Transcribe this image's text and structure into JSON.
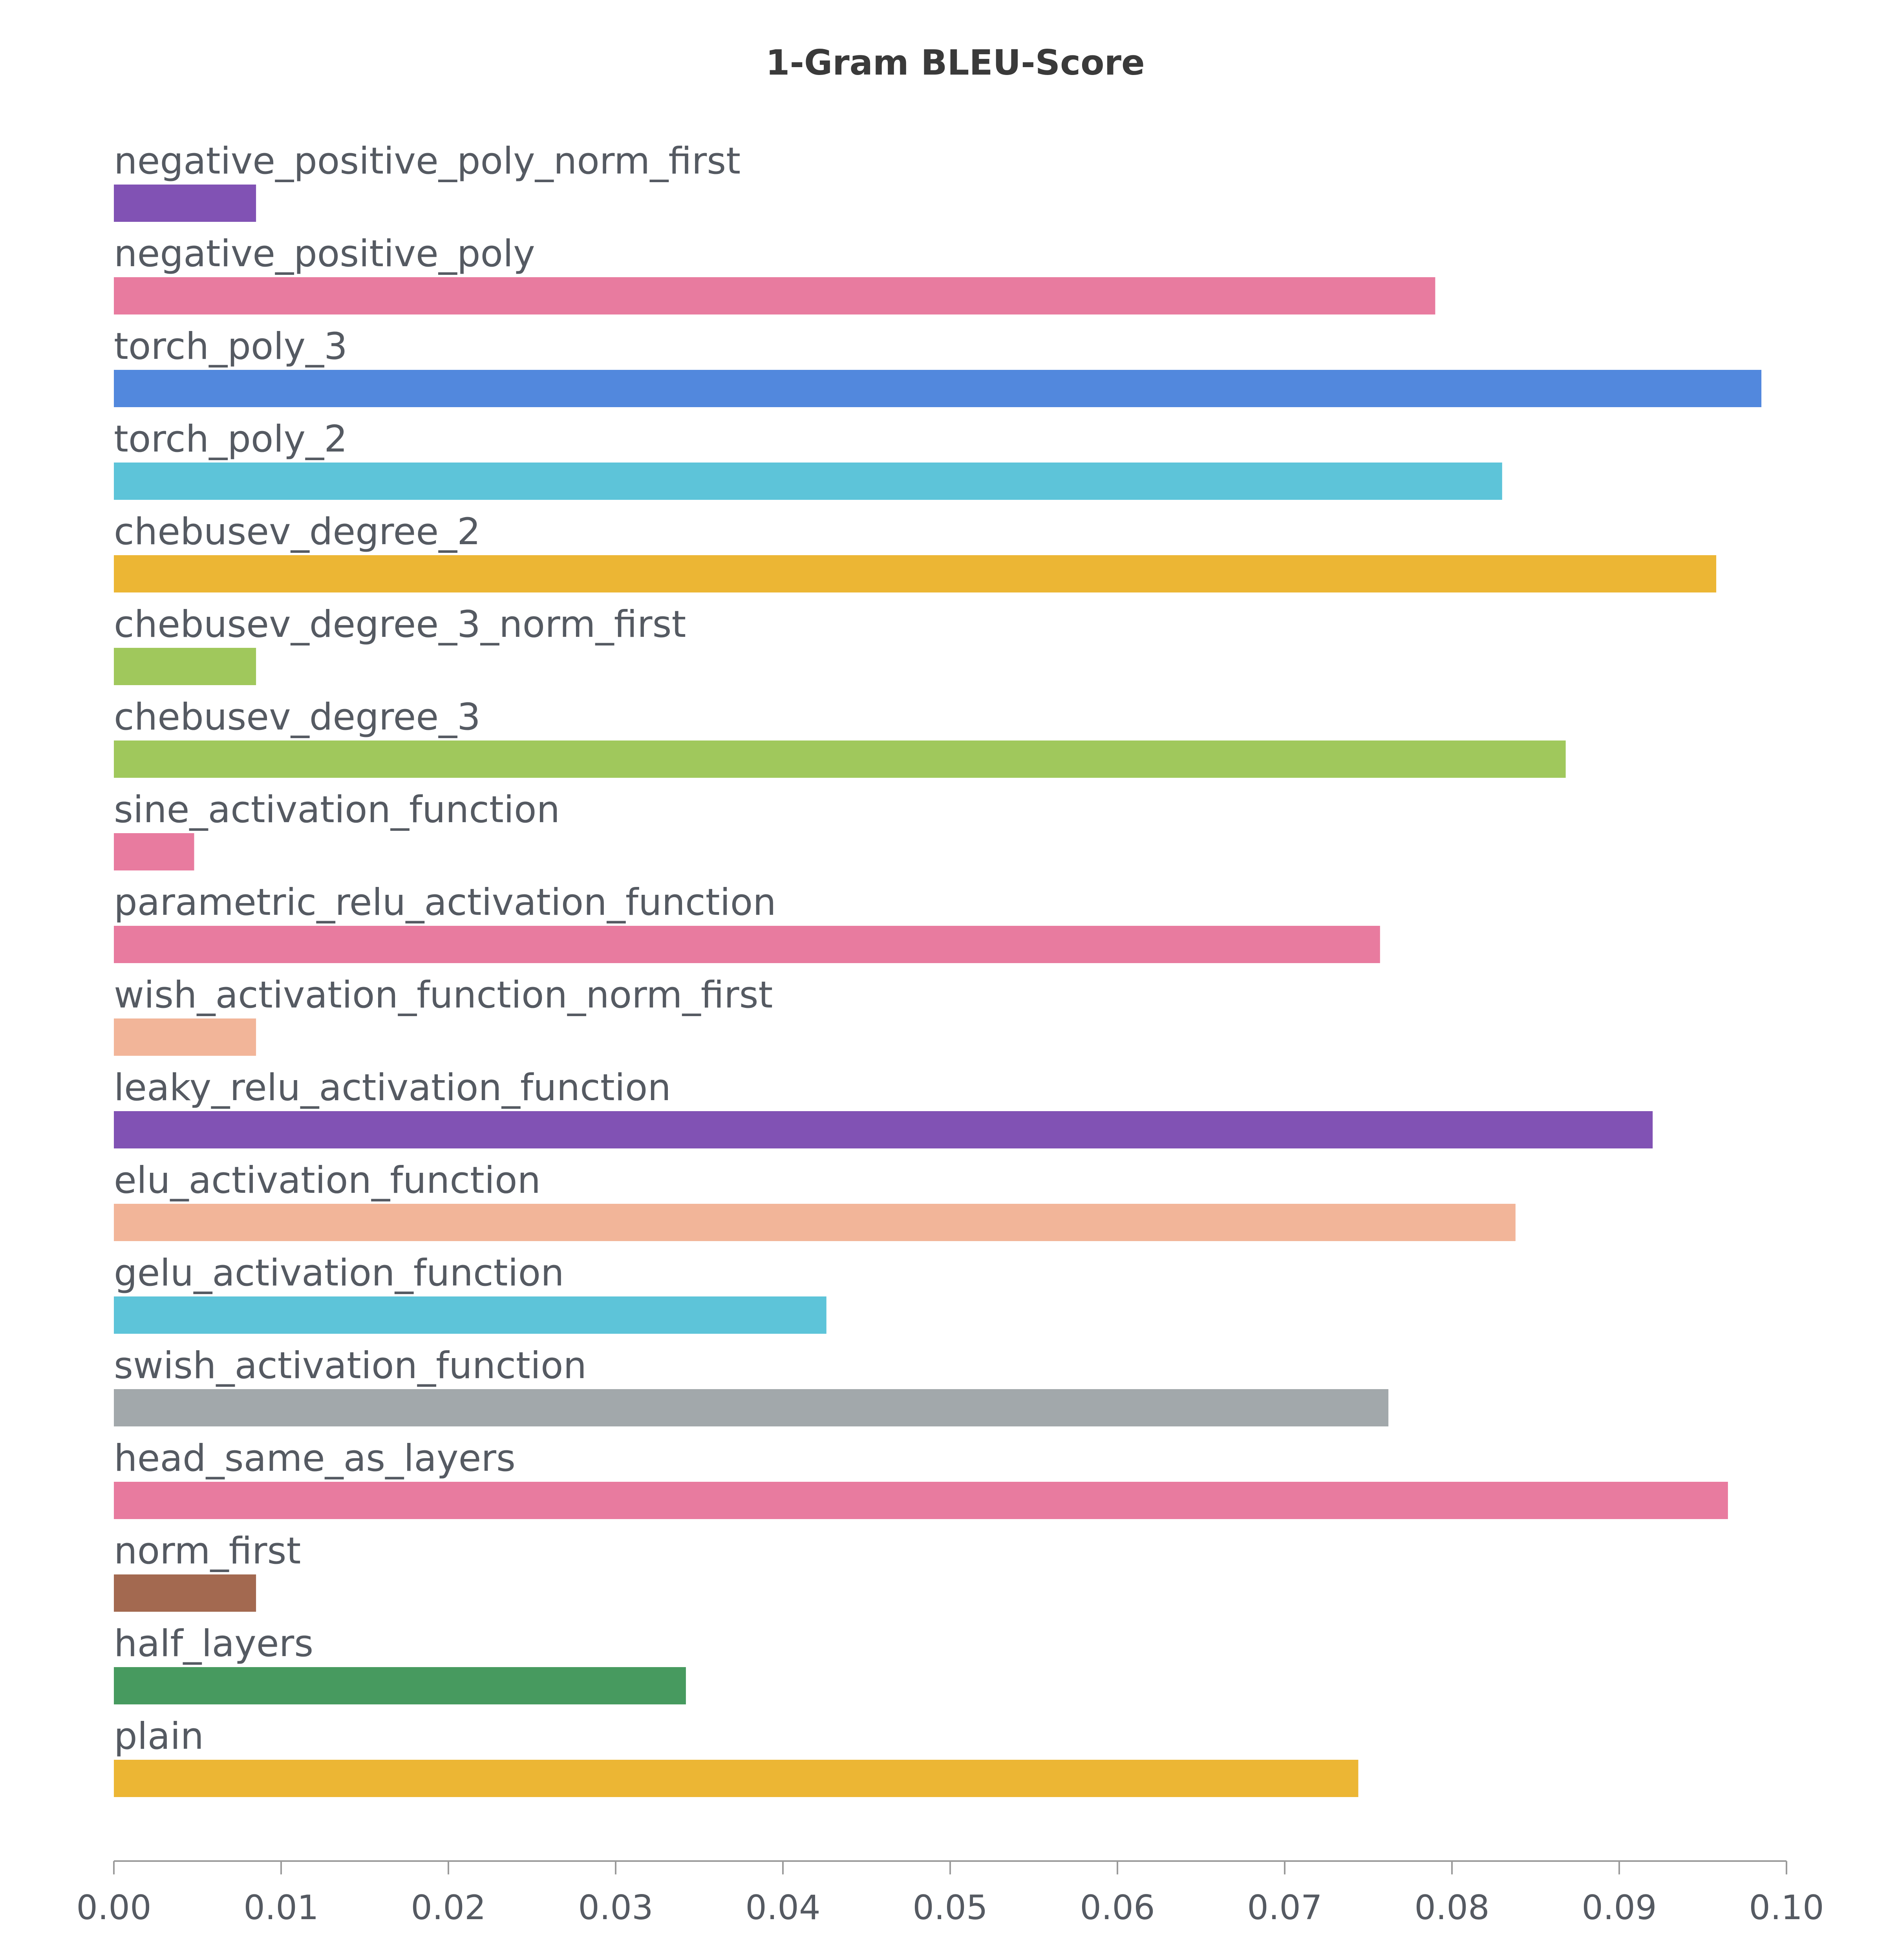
{
  "chart_data": {
    "type": "bar",
    "orientation": "horizontal",
    "title": "1-Gram BLEU-Score",
    "xlabel": "",
    "ylabel": "",
    "xlim": [
      0,
      0.1
    ],
    "grid": false,
    "legend": "none",
    "x_ticks": [
      "0.00",
      "0.01",
      "0.02",
      "0.03",
      "0.04",
      "0.05",
      "0.06",
      "0.07",
      "0.08",
      "0.09",
      "0.10"
    ],
    "x_tick_values": [
      0,
      0.01,
      0.02,
      0.03,
      0.04,
      0.05,
      0.06,
      0.07,
      0.08,
      0.09,
      0.1
    ],
    "categories": [
      "negative_positive_poly_norm_first",
      "negative_positive_poly",
      "torch_poly_3",
      "torch_poly_2",
      "chebusev_degree_2",
      "chebusev_degree_3_norm_first",
      "chebusev_degree_3",
      "sine_activation_function",
      "parametric_relu_activation_function",
      "wish_activation_function_norm_first",
      "leaky_relu_activation_function",
      "elu_activation_function",
      "gelu_activation_function",
      "swish_activation_function",
      "head_same_as_layers",
      "norm_first",
      "half_layers",
      "plain"
    ],
    "values": [
      0.0085,
      0.079,
      0.0985,
      0.083,
      0.0958,
      0.0085,
      0.0868,
      0.0048,
      0.0757,
      0.0085,
      0.092,
      0.0838,
      0.0426,
      0.0762,
      0.0965,
      0.0085,
      0.0342,
      0.0744
    ],
    "colors": [
      "#8152b4",
      "#e87b9f",
      "#5288dd",
      "#5dc4d9",
      "#ecb634",
      "#a0c85c",
      "#a0c85c",
      "#e87b9f",
      "#e87b9f",
      "#f2b599",
      "#8152b4",
      "#f2b599",
      "#5dc4d9",
      "#a2a8ab",
      "#e87b9f",
      "#a36950",
      "#479a5f",
      "#ecb634"
    ]
  }
}
